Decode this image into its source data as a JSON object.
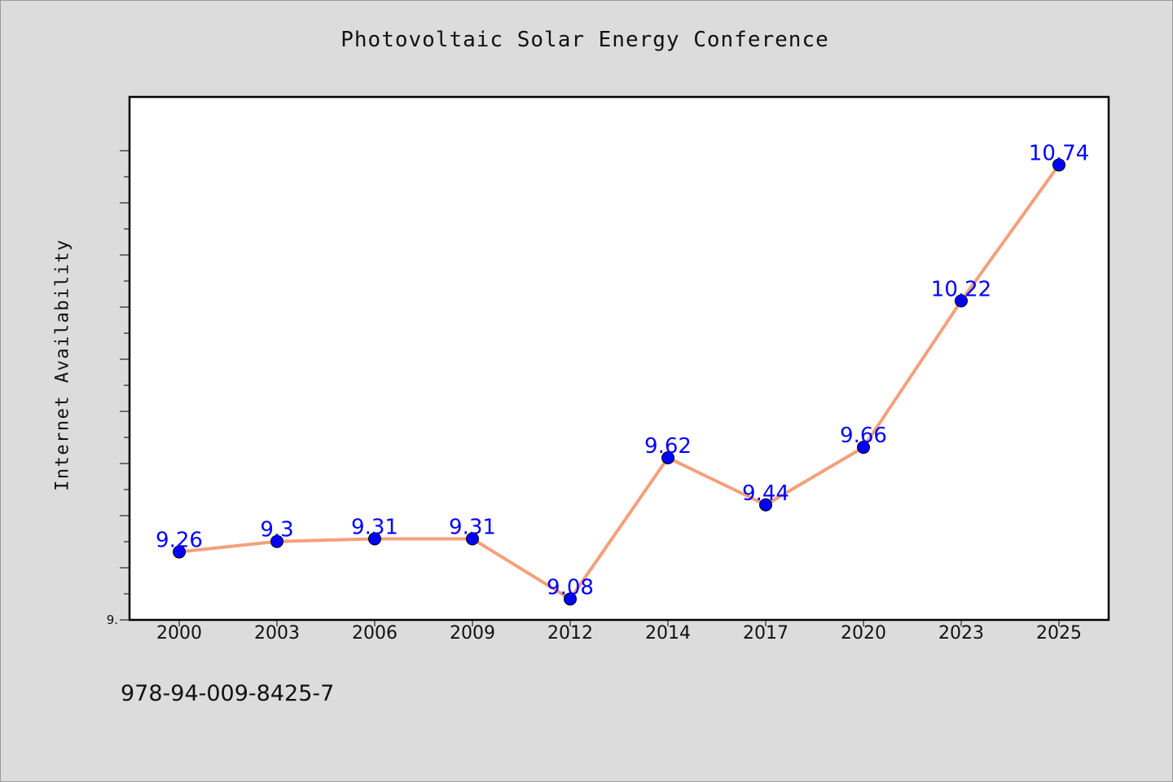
{
  "chart_data": {
    "type": "line",
    "title": "Photovoltaic Solar Energy Conference",
    "xlabel": "",
    "ylabel": "Internet Availability",
    "categories": [
      "2000",
      "2003",
      "2006",
      "2009",
      "2012",
      "2014",
      "2017",
      "2020",
      "2023",
      "2025"
    ],
    "series": [
      {
        "values": [
          9.26,
          9.3,
          9.31,
          9.31,
          9.08,
          9.62,
          9.44,
          9.66,
          10.22,
          10.74
        ]
      }
    ],
    "ylim": [
      9.0,
      11.0
    ],
    "y_tick_labels": [
      "9."
    ],
    "grid": false,
    "line_color": "#f4a07c",
    "marker_color": "#0000ff",
    "label_color": "#0000ff"
  },
  "footer": {
    "isbn": "978-94-009-8425-7"
  }
}
